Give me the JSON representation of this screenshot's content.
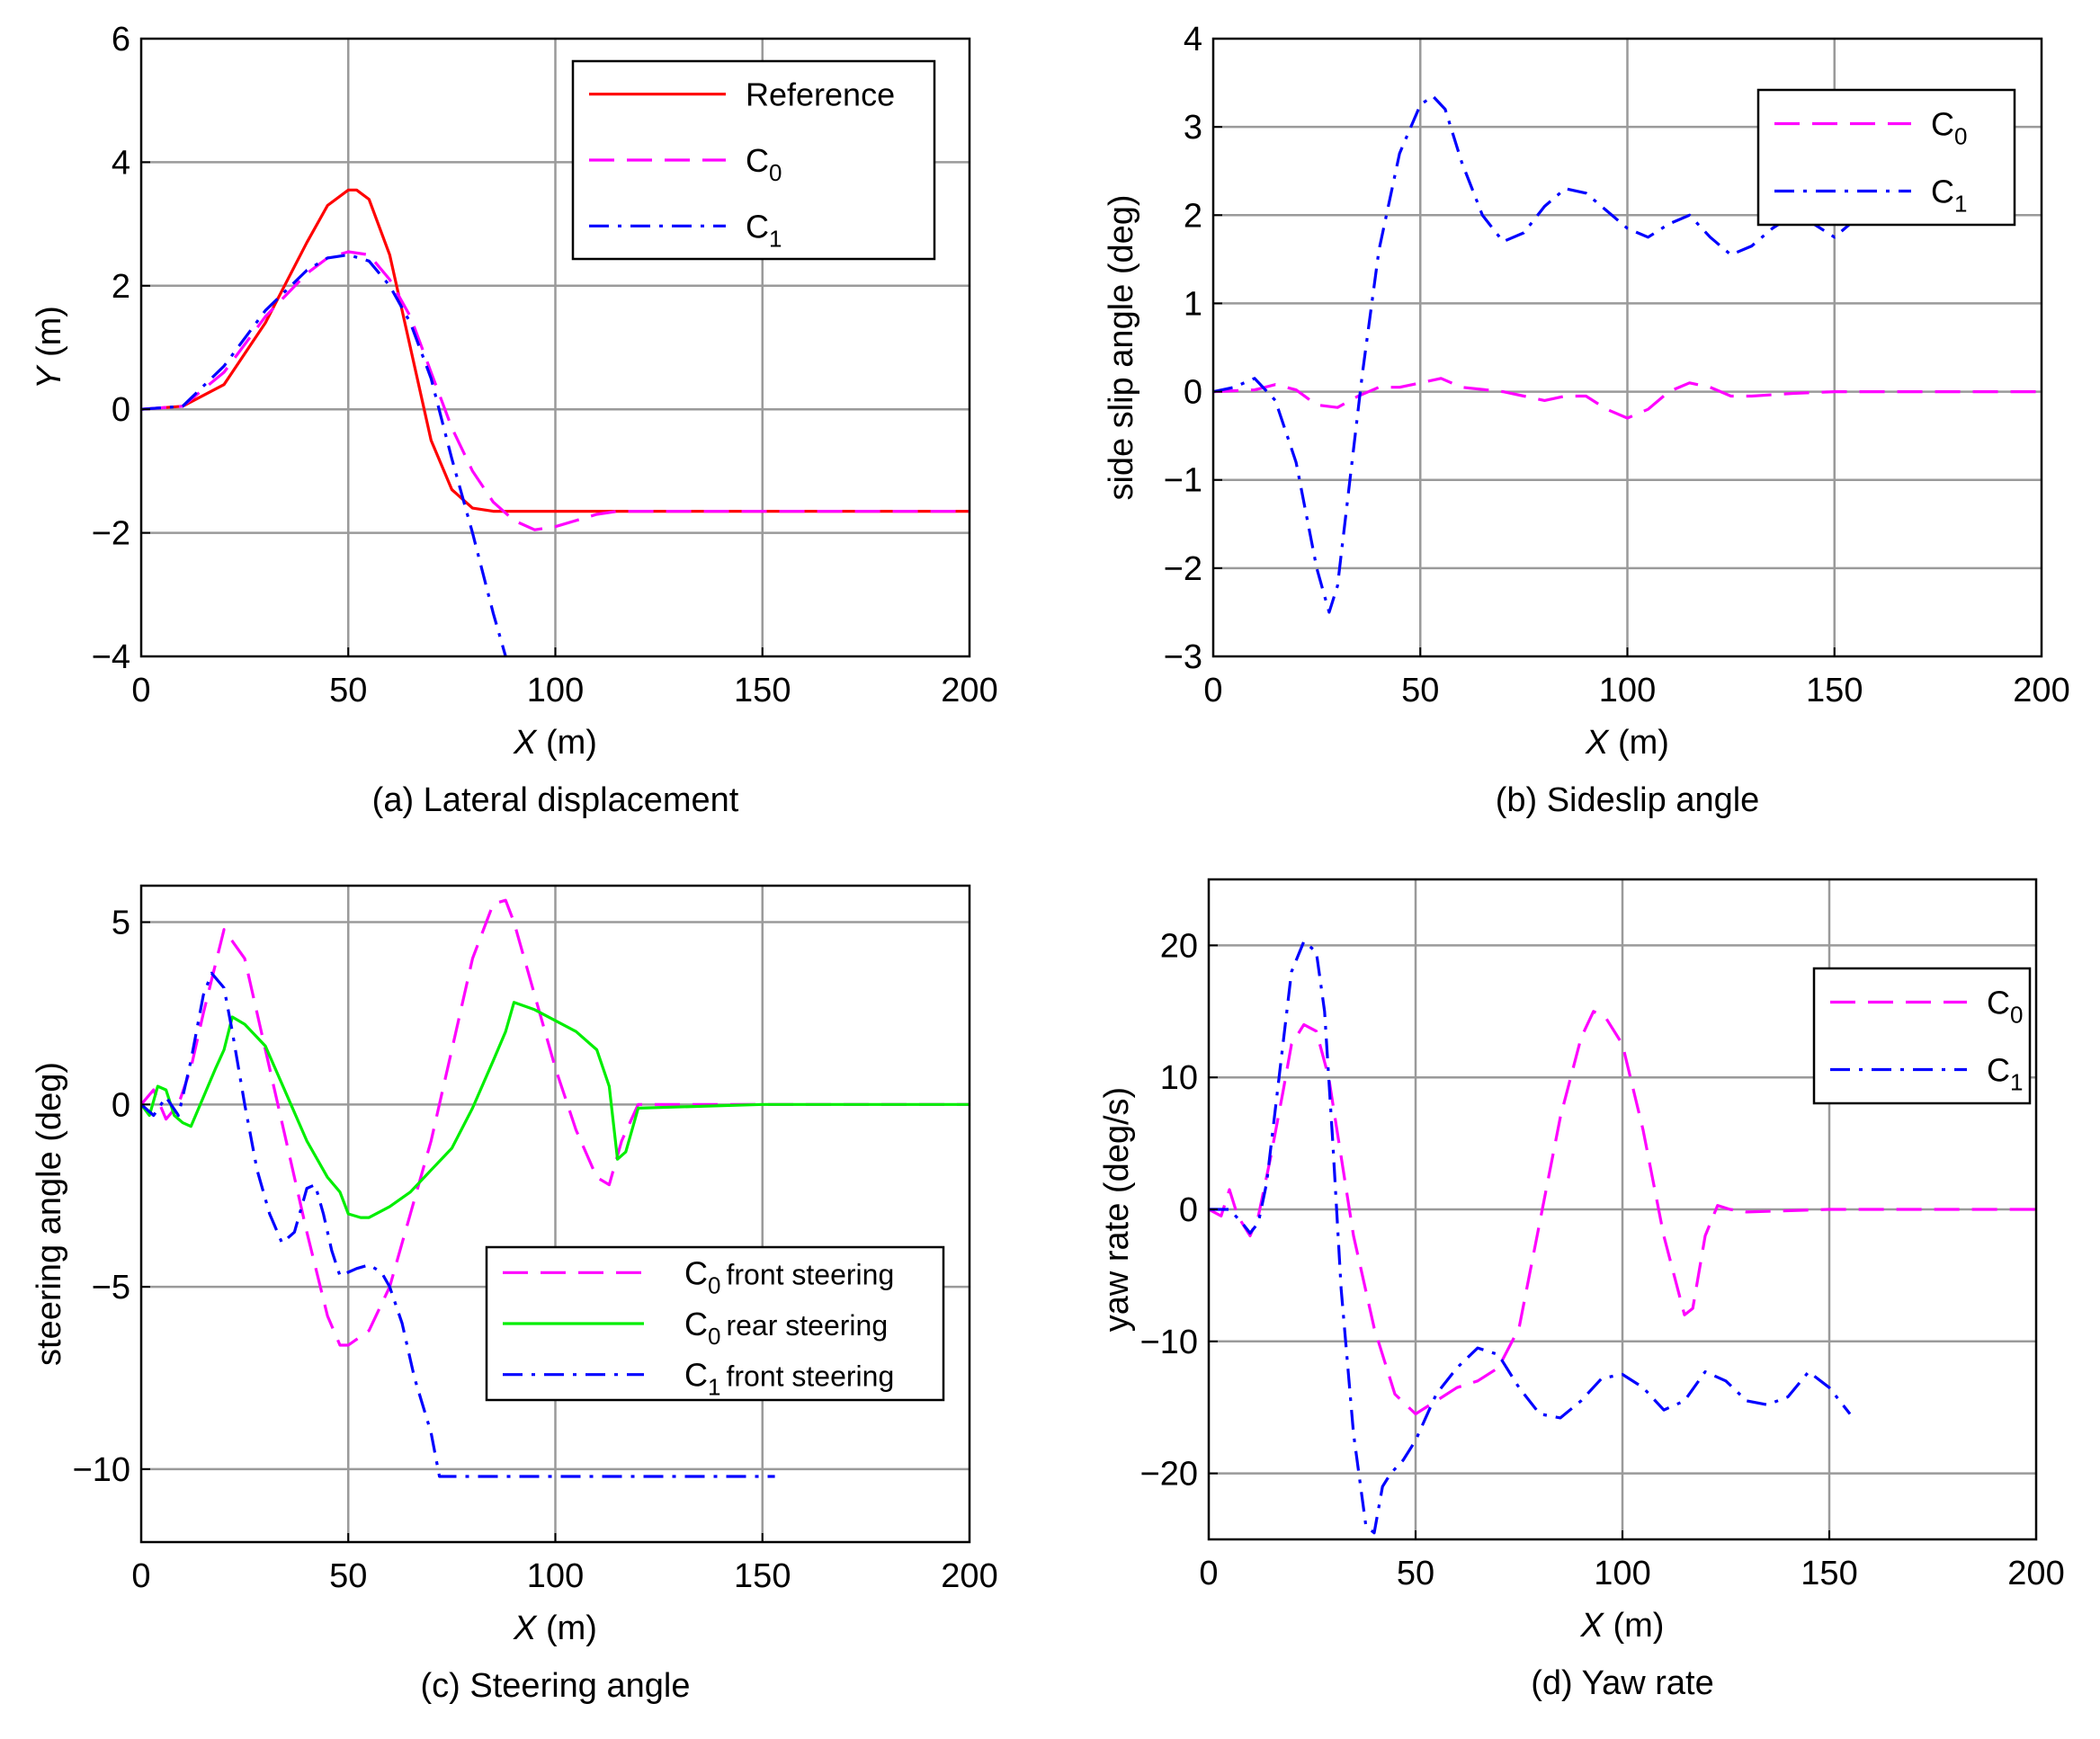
{
  "colors": {
    "reference": "#ff0000",
    "c0": "#ff00ff",
    "c1": "#0000ff",
    "c0_rear": "#00ee00",
    "grid": "#9a9a9a",
    "frame": "#000000"
  },
  "chart_data": [
    {
      "id": "a",
      "type": "line",
      "caption": "(a) Lateral displacement",
      "xlabel_var": "X",
      "xlabel_unit": " (m)",
      "ylabel_var": "Y",
      "ylabel_unit": " (m)",
      "xlim": [
        0,
        200
      ],
      "ylim": [
        -4,
        6
      ],
      "xticks": [
        0,
        50,
        100,
        150,
        200
      ],
      "yticks": [
        -4,
        -2,
        0,
        2,
        4,
        6
      ],
      "ytick_labels": [
        "−4",
        "−2",
        "0",
        "2",
        "4",
        "6"
      ],
      "grid": true,
      "legend": "top-right",
      "series": [
        {
          "name": "Reference",
          "legend_main": "Reference",
          "legend_sub": "",
          "style": "solid",
          "color_key": "reference",
          "x": [
            0,
            10,
            20,
            30,
            40,
            45,
            50,
            52,
            55,
            60,
            65,
            70,
            75,
            80,
            85,
            90,
            100,
            120,
            150,
            200
          ],
          "y": [
            0,
            0.05,
            0.4,
            1.4,
            2.7,
            3.3,
            3.55,
            3.55,
            3.4,
            2.5,
            1.0,
            -0.5,
            -1.3,
            -1.6,
            -1.65,
            -1.65,
            -1.65,
            -1.65,
            -1.65,
            -1.65
          ]
        },
        {
          "name": "C0",
          "legend_main": "C",
          "legend_sub": "0",
          "style": "dash",
          "color_key": "c0",
          "x": [
            0,
            10,
            20,
            30,
            40,
            45,
            50,
            55,
            60,
            65,
            70,
            75,
            80,
            85,
            90,
            95,
            100,
            110,
            115,
            120,
            150,
            200
          ],
          "y": [
            0,
            0.05,
            0.6,
            1.5,
            2.2,
            2.45,
            2.55,
            2.5,
            2.1,
            1.5,
            0.6,
            -0.3,
            -1.0,
            -1.5,
            -1.8,
            -1.95,
            -1.9,
            -1.7,
            -1.65,
            -1.65,
            -1.65,
            -1.65
          ]
        },
        {
          "name": "C1",
          "legend_main": "C",
          "legend_sub": "1",
          "style": "dashdot",
          "color_key": "c1",
          "x": [
            0,
            10,
            20,
            30,
            40,
            45,
            50,
            55,
            60,
            65,
            70,
            75,
            80,
            85,
            88
          ],
          "y": [
            0,
            0.05,
            0.7,
            1.6,
            2.25,
            2.45,
            2.5,
            2.4,
            2.0,
            1.4,
            0.5,
            -0.8,
            -2.0,
            -3.3,
            -4.0
          ]
        }
      ]
    },
    {
      "id": "b",
      "type": "line",
      "caption": "(b) Sideslip angle",
      "xlabel_var": "X",
      "xlabel_unit": " (m)",
      "ylabel_var": "",
      "ylabel_unit": "side slip angle (deg)",
      "xlim": [
        0,
        200
      ],
      "ylim": [
        -3,
        4
      ],
      "xticks": [
        0,
        50,
        100,
        150,
        200
      ],
      "yticks": [
        -3,
        -2,
        -1,
        0,
        1,
        2,
        3,
        4
      ],
      "ytick_labels": [
        "−3",
        "−2",
        "−1",
        "0",
        "1",
        "2",
        "3",
        "4"
      ],
      "grid": true,
      "legend": "top-right",
      "series": [
        {
          "name": "C0",
          "legend_main": "C",
          "legend_sub": "0",
          "style": "dash",
          "color_key": "c0",
          "x": [
            0,
            10,
            15,
            20,
            25,
            30,
            35,
            40,
            45,
            50,
            55,
            60,
            70,
            75,
            80,
            85,
            90,
            95,
            100,
            105,
            110,
            115,
            120,
            125,
            130,
            140,
            150,
            200
          ],
          "y": [
            0,
            0.02,
            0.08,
            0.02,
            -0.15,
            -0.18,
            -0.05,
            0.05,
            0.05,
            0.1,
            0.15,
            0.05,
            0,
            -0.05,
            -0.1,
            -0.05,
            -0.05,
            -0.2,
            -0.3,
            -0.2,
            0,
            0.1,
            0.05,
            -0.05,
            -0.05,
            -0.02,
            0,
            0
          ]
        },
        {
          "name": "C1",
          "legend_main": "C",
          "legend_sub": "1",
          "style": "dashdot",
          "color_key": "c1",
          "x": [
            0,
            5,
            10,
            15,
            20,
            25,
            28,
            30,
            33,
            36,
            40,
            45,
            50,
            53,
            56,
            60,
            65,
            70,
            75,
            80,
            85,
            90,
            95,
            100,
            105,
            110,
            115,
            120,
            125,
            130,
            135,
            140,
            145,
            150,
            155
          ],
          "y": [
            0,
            0.05,
            0.15,
            -0.1,
            -0.8,
            -2.0,
            -2.5,
            -2.2,
            -1.0,
            0.2,
            1.6,
            2.7,
            3.25,
            3.35,
            3.2,
            2.6,
            2.0,
            1.7,
            1.8,
            2.1,
            2.3,
            2.25,
            2.05,
            1.85,
            1.75,
            1.9,
            2.0,
            1.75,
            1.55,
            1.65,
            1.85,
            2.0,
            1.9,
            1.75,
            1.95
          ]
        }
      ]
    },
    {
      "id": "c",
      "type": "line",
      "caption": "(c) Steering angle",
      "xlabel_var": "X",
      "xlabel_unit": " (m)",
      "ylabel_var": "",
      "ylabel_unit": "steering angle (deg)",
      "xlim": [
        0,
        200
      ],
      "ylim": [
        -12,
        6
      ],
      "xticks": [
        0,
        50,
        100,
        150,
        200
      ],
      "yticks": [
        -10,
        -5,
        0,
        5
      ],
      "ytick_labels": [
        "−10",
        "−5",
        "0",
        "5"
      ],
      "grid": true,
      "legend": "bottom-right",
      "series": [
        {
          "name": "C0 front steering",
          "legend_main": "C",
          "legend_sub": "0",
          "legend_tail": "front steering",
          "style": "dash",
          "color_key": "c0",
          "x": [
            0,
            3,
            6,
            9,
            12,
            15,
            20,
            25,
            30,
            35,
            40,
            45,
            48,
            50,
            55,
            60,
            65,
            70,
            75,
            80,
            85,
            88,
            90,
            95,
            100,
            105,
            110,
            113,
            116,
            120,
            150,
            200
          ],
          "y": [
            0,
            0.4,
            -0.4,
            0,
            1.0,
            2.5,
            4.8,
            4.0,
            1.5,
            -1.0,
            -3.5,
            -5.8,
            -6.6,
            -6.6,
            -6.2,
            -5.0,
            -3.0,
            -1.0,
            1.5,
            4.0,
            5.5,
            5.6,
            5.0,
            3.0,
            1.0,
            -0.7,
            -2.0,
            -2.2,
            -1.0,
            0,
            0,
            0
          ]
        },
        {
          "name": "C0 rear steering",
          "legend_main": "C",
          "legend_sub": "0",
          "legend_tail": "rear steering",
          "style": "solid",
          "color_key": "c0_rear",
          "x": [
            0,
            2,
            4,
            6,
            8,
            10,
            12,
            15,
            18,
            20,
            22,
            25,
            30,
            35,
            40,
            45,
            48,
            50,
            53,
            55,
            60,
            65,
            70,
            75,
            80,
            85,
            88,
            90,
            95,
            100,
            105,
            110,
            113,
            115,
            117,
            120,
            150,
            200
          ],
          "y": [
            0,
            -0.3,
            0.5,
            0.4,
            -0.3,
            -0.5,
            -0.6,
            0.2,
            1.0,
            1.5,
            2.4,
            2.2,
            1.6,
            0.3,
            -1.0,
            -2.0,
            -2.4,
            -3.0,
            -3.1,
            -3.1,
            -2.8,
            -2.4,
            -1.8,
            -1.2,
            -0.1,
            1.2,
            2.0,
            2.8,
            2.6,
            2.3,
            2.0,
            1.5,
            0.5,
            -1.5,
            -1.3,
            -0.1,
            0,
            0
          ]
        },
        {
          "name": "C1 front steering",
          "legend_main": "C",
          "legend_sub": "1",
          "legend_tail": "front steering",
          "style": "dashdot",
          "color_key": "c1",
          "x": [
            0,
            3,
            6,
            9,
            12,
            15,
            17,
            20,
            22,
            25,
            28,
            31,
            34,
            37,
            40,
            42,
            44,
            46,
            48,
            50,
            52,
            55,
            58,
            60,
            63,
            66,
            70,
            72,
            75,
            100,
            125,
            153
          ],
          "y": [
            0,
            -0.3,
            0.2,
            -0.3,
            1.2,
            3.0,
            3.6,
            3.2,
            2.0,
            0.0,
            -1.8,
            -3.0,
            -3.8,
            -3.5,
            -2.3,
            -2.2,
            -3.0,
            -4.0,
            -4.7,
            -4.6,
            -4.5,
            -4.4,
            -4.6,
            -5.0,
            -6.0,
            -7.5,
            -9.0,
            -10.2,
            -10.2,
            -10.2,
            -10.2,
            -10.2
          ]
        }
      ]
    },
    {
      "id": "d",
      "type": "line",
      "caption": "(d) Yaw rate",
      "xlabel_var": "X",
      "xlabel_unit": " (m)",
      "ylabel_var": "",
      "ylabel_unit": "yaw rate (deg/s)",
      "xlim": [
        0,
        200
      ],
      "ylim": [
        -25,
        25
      ],
      "xticks": [
        0,
        50,
        100,
        150,
        200
      ],
      "yticks": [
        -20,
        -10,
        0,
        10,
        20
      ],
      "ytick_labels": [
        "−20",
        "−10",
        "0",
        "10",
        "20"
      ],
      "grid": true,
      "legend": "top-right",
      "series": [
        {
          "name": "C0",
          "legend_main": "C",
          "legend_sub": "0",
          "style": "dash",
          "color_key": "c0",
          "x": [
            0,
            3,
            5,
            7,
            10,
            12,
            15,
            18,
            20,
            23,
            26,
            29,
            32,
            35,
            40,
            45,
            50,
            55,
            60,
            65,
            70,
            75,
            80,
            85,
            90,
            93,
            96,
            100,
            105,
            110,
            115,
            117,
            120,
            123,
            126,
            130,
            150,
            200
          ],
          "y": [
            0,
            -0.5,
            1.5,
            -0.5,
            -2.0,
            -0.5,
            4.0,
            9.0,
            12.5,
            14.0,
            13.5,
            10.0,
            4.0,
            -2.0,
            -9.0,
            -14.0,
            -15.5,
            -14.5,
            -13.5,
            -13.0,
            -12.0,
            -9.0,
            -1.0,
            7.0,
            13.0,
            15.0,
            14.5,
            12.5,
            6.0,
            -2.0,
            -8.0,
            -7.5,
            -2.0,
            0.3,
            0.0,
            -0.2,
            0.0,
            0.0
          ]
        },
        {
          "name": "C1",
          "legend_main": "C",
          "legend_sub": "1",
          "style": "dashdot",
          "color_key": "c1",
          "x": [
            0,
            5,
            8,
            10,
            12,
            14,
            17,
            20,
            23,
            26,
            28,
            30,
            32,
            35,
            38,
            40,
            42,
            44,
            47,
            50,
            55,
            60,
            65,
            70,
            75,
            80,
            85,
            90,
            95,
            100,
            105,
            110,
            115,
            120,
            125,
            130,
            135,
            140,
            145,
            150,
            155
          ],
          "y": [
            0,
            0,
            -1.0,
            -1.8,
            -1.0,
            2.0,
            10.0,
            18.0,
            20.3,
            19.5,
            15.0,
            5.0,
            -6.0,
            -17.0,
            -24.0,
            -24.5,
            -21.0,
            -20.0,
            -19.0,
            -17.5,
            -14.0,
            -12.0,
            -10.5,
            -11.0,
            -13.5,
            -15.5,
            -15.8,
            -14.5,
            -12.8,
            -12.5,
            -13.5,
            -15.2,
            -14.5,
            -12.3,
            -13.0,
            -14.5,
            -14.8,
            -14.2,
            -12.3,
            -13.5,
            -15.5
          ]
        }
      ]
    }
  ]
}
